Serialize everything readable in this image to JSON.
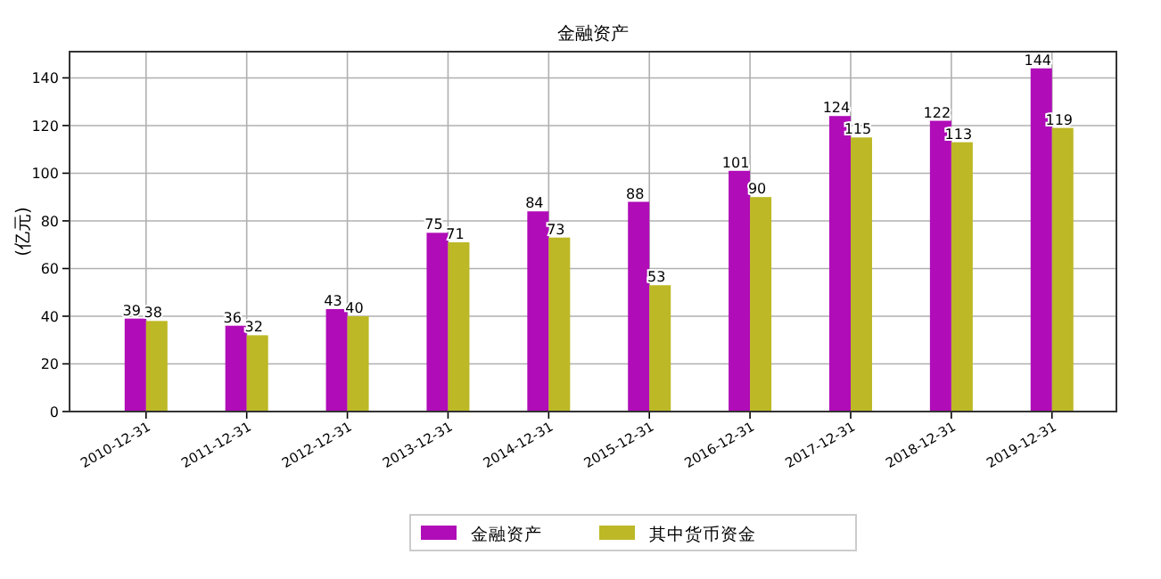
{
  "chart_data": {
    "type": "bar",
    "title": "金融资产",
    "ylabel": "(亿元)",
    "categories": [
      "2010-12-31",
      "2011-12-31",
      "2012-12-31",
      "2013-12-31",
      "2014-12-31",
      "2015-12-31",
      "2016-12-31",
      "2017-12-31",
      "2018-12-31",
      "2019-12-31"
    ],
    "series": [
      {
        "name": "金融资产",
        "color": "#b00cb8",
        "values": [
          39,
          36,
          43,
          75,
          84,
          88,
          101,
          124,
          122,
          144
        ]
      },
      {
        "name": "其中货币资金",
        "color": "#bdb825",
        "values": [
          38,
          32,
          40,
          71,
          73,
          53,
          90,
          115,
          113,
          119
        ]
      }
    ],
    "ylim": [
      0,
      151
    ],
    "yticks": [
      0,
      20,
      40,
      60,
      80,
      100,
      120,
      140
    ],
    "grid": true,
    "legend": "bottom",
    "data_labels": true
  }
}
